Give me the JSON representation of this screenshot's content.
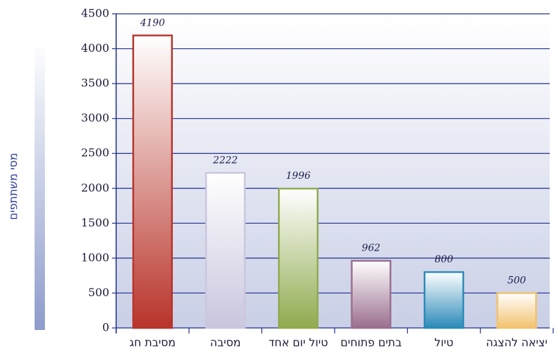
{
  "chart_data": {
    "type": "bar",
    "y_axis_label": "מסי משתתפים",
    "categories": [
      "מסיבת חג",
      "מסיבה",
      "טיול יום אחד",
      "בתים פתוחים",
      "טיול",
      "יציאה להצגה"
    ],
    "values": [
      4190,
      2222,
      1996,
      962,
      800,
      500
    ],
    "colors": [
      "#b8342a",
      "#c9c6de",
      "#8faa4e",
      "#9a6e8e",
      "#2a8ab8",
      "#f2c26e"
    ],
    "ylim": [
      0,
      4500
    ],
    "yticks": [
      0,
      500,
      1000,
      1500,
      2000,
      2500,
      3000,
      3500,
      4000,
      4500
    ],
    "grid": true
  }
}
